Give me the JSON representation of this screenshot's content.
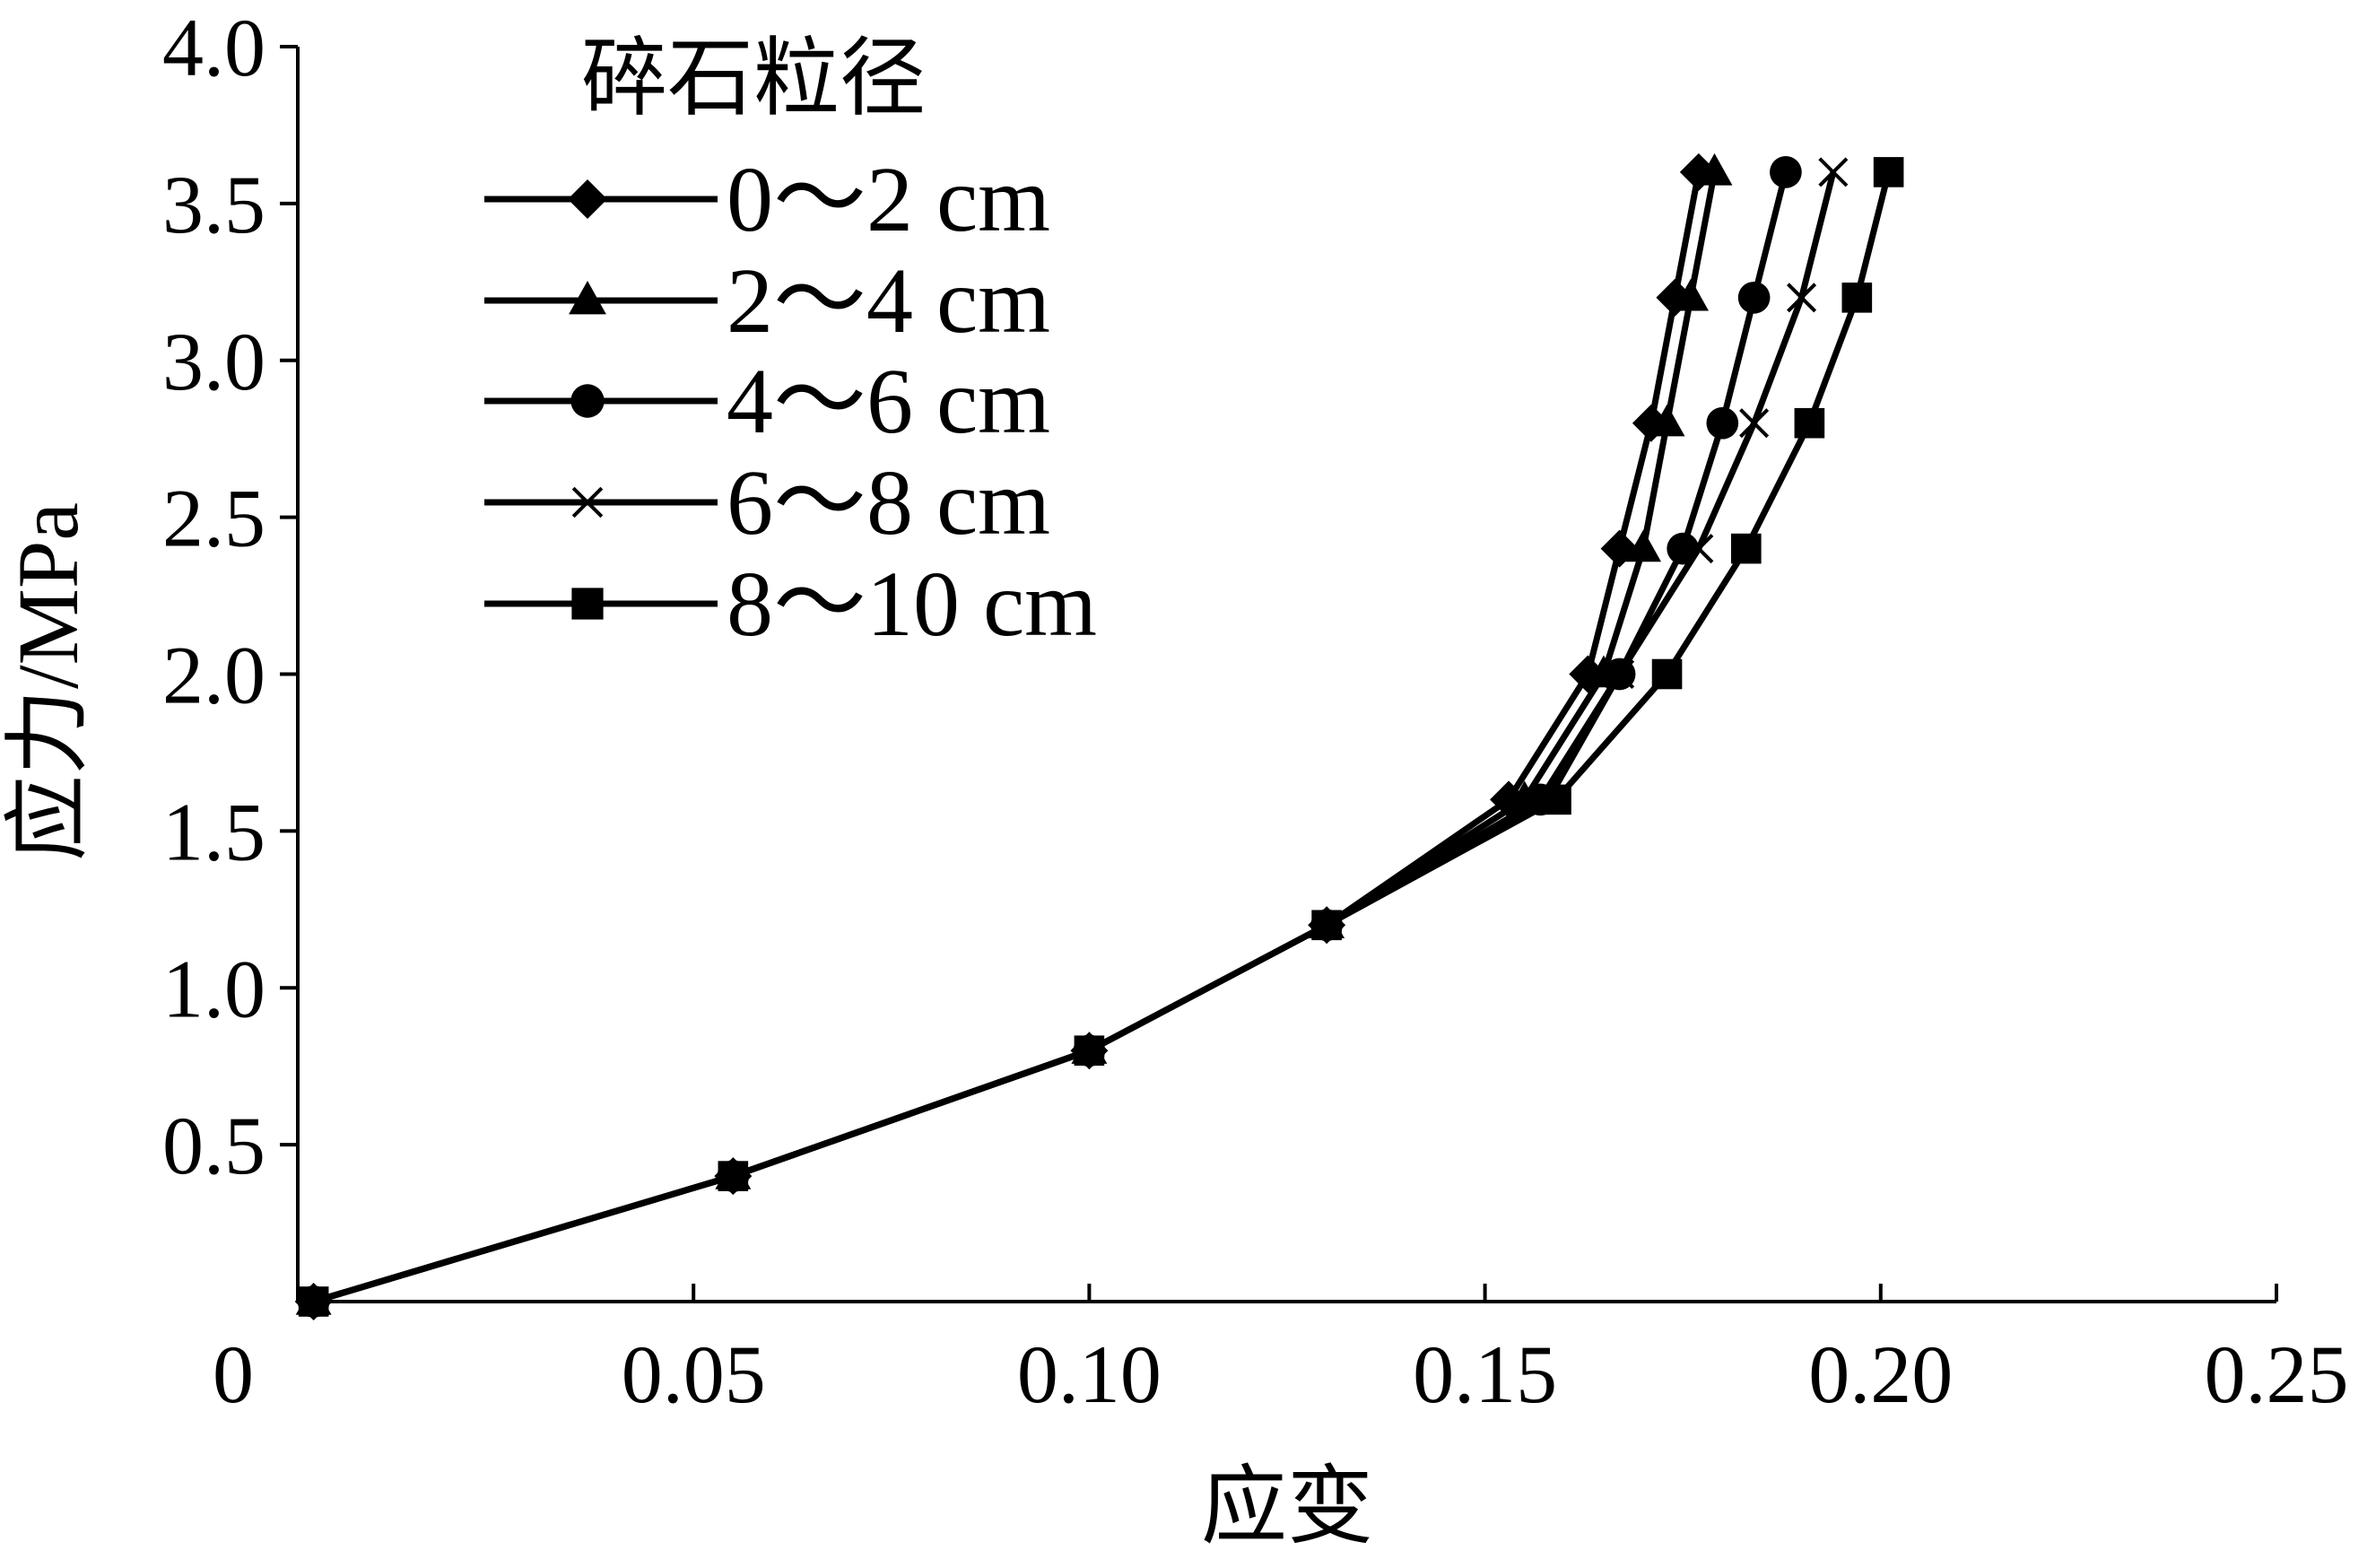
{
  "chart_data": {
    "type": "line",
    "xlabel": "应变",
    "ylabel": "应力/MPa",
    "xlim": [
      0,
      0.25
    ],
    "ylim": [
      0,
      4.0
    ],
    "x_ticks": [
      0,
      0.05,
      0.1,
      0.15,
      0.2,
      0.25
    ],
    "x_tick_labels": [
      "0",
      "0.05",
      "0.10",
      "0.15",
      "0.20",
      "0.25"
    ],
    "y_ticks": [
      0.5,
      1.0,
      1.5,
      2.0,
      2.5,
      3.0,
      3.5,
      4.0
    ],
    "y_tick_labels": [
      "0.5",
      "1.0",
      "1.5",
      "2.0",
      "2.5",
      "3.0",
      "3.5",
      "4.0"
    ],
    "grid": false,
    "legend": {
      "title": "碎石粒径",
      "position": "top-left"
    },
    "series": [
      {
        "name": "0～2 cm",
        "marker": "diamond",
        "x": [
          0.002,
          0.055,
          0.1,
          0.13,
          0.153,
          0.163,
          0.167,
          0.171,
          0.174,
          0.177
        ],
        "y": [
          0.0,
          0.4,
          0.8,
          1.2,
          1.6,
          2.0,
          2.4,
          2.8,
          3.2,
          3.6
        ]
      },
      {
        "name": "2～4 cm",
        "marker": "triangle",
        "x": [
          0.002,
          0.055,
          0.1,
          0.13,
          0.155,
          0.165,
          0.17,
          0.173,
          0.176,
          0.179
        ],
        "y": [
          0.0,
          0.4,
          0.8,
          1.2,
          1.6,
          2.0,
          2.4,
          2.8,
          3.2,
          3.6
        ]
      },
      {
        "name": "4～6 cm",
        "marker": "circle",
        "x": [
          0.002,
          0.055,
          0.1,
          0.13,
          0.157,
          0.167,
          0.175,
          0.18,
          0.184,
          0.188
        ],
        "y": [
          0.0,
          0.4,
          0.8,
          1.2,
          1.6,
          2.0,
          2.4,
          2.8,
          3.2,
          3.6
        ]
      },
      {
        "name": "6～8 cm",
        "marker": "cross",
        "x": [
          0.002,
          0.055,
          0.1,
          0.13,
          0.158,
          0.167,
          0.177,
          0.184,
          0.19,
          0.194
        ],
        "y": [
          0.0,
          0.4,
          0.8,
          1.2,
          1.6,
          2.0,
          2.4,
          2.8,
          3.2,
          3.6
        ]
      },
      {
        "name": "8～10 cm",
        "marker": "square",
        "x": [
          0.002,
          0.055,
          0.1,
          0.13,
          0.159,
          0.173,
          0.183,
          0.191,
          0.197,
          0.201
        ],
        "y": [
          0.0,
          0.4,
          0.8,
          1.2,
          1.6,
          2.0,
          2.4,
          2.8,
          3.2,
          3.6
        ]
      }
    ]
  }
}
